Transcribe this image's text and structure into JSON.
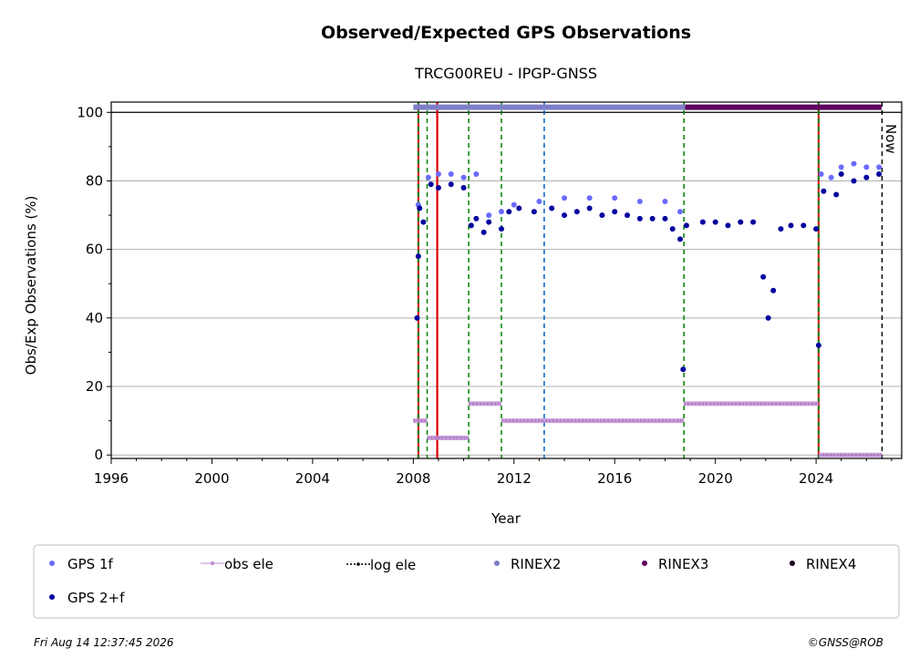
{
  "chart_data": {
    "type": "scatter",
    "title": "Observed/Expected GPS Observations",
    "subtitle": "TRCG00REU - IPGP-GNSS",
    "xlabel": "Year",
    "ylabel": "Obs/Exp Observations (%)",
    "xlim": [
      1996,
      2027.4
    ],
    "ylim": [
      -1,
      103
    ],
    "x_ticks": [
      1996,
      2000,
      2004,
      2008,
      2012,
      2016,
      2020,
      2024
    ],
    "y_ticks": [
      0,
      20,
      40,
      60,
      80,
      100
    ],
    "grid": "horizontal",
    "now_label": "Now",
    "now_x": 2026.62,
    "legend": {
      "placement": "bottom",
      "entries": [
        "GPS 1f",
        "obs ele",
        "log ele",
        "RINEX2",
        "RINEX3",
        "RINEX4",
        "GPS 2+f"
      ]
    },
    "colors": {
      "gps_1f": "#6a6aff",
      "gps_2f": "#00009e",
      "obs_ele": "#c08ad6",
      "log_ele": "#000000",
      "rinex2": "#7e7ec8",
      "rinex3": "#5c005c",
      "rinex4": "#1a0020",
      "event_green": "#008000",
      "event_red": "#dd0000",
      "event_blue": "#0060c0"
    },
    "rinex_bars": [
      {
        "format": "RINEX2",
        "x_start": 2008.0,
        "x_end": 2018.8,
        "y": 101.5
      },
      {
        "format": "RINEX3",
        "x_start": 2018.8,
        "x_end": 2026.6,
        "y": 101.5
      }
    ],
    "event_lines": [
      {
        "x": 2008.2,
        "style": "red-green dashed"
      },
      {
        "x": 2008.55,
        "style": "green dashed"
      },
      {
        "x": 2008.95,
        "style": "red solid"
      },
      {
        "x": 2010.2,
        "style": "green dashed"
      },
      {
        "x": 2011.5,
        "style": "green dashed"
      },
      {
        "x": 2013.2,
        "style": "blue dashed"
      },
      {
        "x": 2018.75,
        "style": "green dashed"
      },
      {
        "x": 2024.1,
        "style": "red-green dashed"
      },
      {
        "x": 2026.62,
        "style": "black dashed"
      }
    ],
    "series": [
      {
        "name": "GPS 1f",
        "points": [
          [
            2008.2,
            73
          ],
          [
            2008.6,
            81
          ],
          [
            2009.0,
            82
          ],
          [
            2009.5,
            82
          ],
          [
            2010.0,
            81
          ],
          [
            2010.5,
            82
          ],
          [
            2011.0,
            70
          ],
          [
            2011.5,
            71
          ],
          [
            2012.0,
            73
          ],
          [
            2013.0,
            74
          ],
          [
            2014.0,
            75
          ],
          [
            2015.0,
            75
          ],
          [
            2016.0,
            75
          ],
          [
            2017.0,
            74
          ],
          [
            2018.0,
            74
          ],
          [
            2018.6,
            71
          ],
          [
            2024.2,
            82
          ],
          [
            2024.6,
            81
          ],
          [
            2025.0,
            84
          ],
          [
            2025.5,
            85
          ],
          [
            2026.0,
            84
          ],
          [
            2026.5,
            84
          ]
        ]
      },
      {
        "name": "GPS 2+f",
        "points": [
          [
            2008.15,
            40
          ],
          [
            2008.2,
            58
          ],
          [
            2008.25,
            72
          ],
          [
            2008.4,
            68
          ],
          [
            2008.7,
            79
          ],
          [
            2009.0,
            78
          ],
          [
            2009.5,
            79
          ],
          [
            2010.0,
            78
          ],
          [
            2010.3,
            67
          ],
          [
            2010.5,
            69
          ],
          [
            2010.8,
            65
          ],
          [
            2011.0,
            68
          ],
          [
            2011.5,
            66
          ],
          [
            2011.8,
            71
          ],
          [
            2012.2,
            72
          ],
          [
            2012.8,
            71
          ],
          [
            2013.5,
            72
          ],
          [
            2014.0,
            70
          ],
          [
            2014.5,
            71
          ],
          [
            2015.0,
            72
          ],
          [
            2015.5,
            70
          ],
          [
            2016.0,
            71
          ],
          [
            2016.5,
            70
          ],
          [
            2017.0,
            69
          ],
          [
            2017.5,
            69
          ],
          [
            2018.0,
            69
          ],
          [
            2018.3,
            66
          ],
          [
            2018.6,
            63
          ],
          [
            2018.72,
            25
          ],
          [
            2018.85,
            67
          ],
          [
            2019.5,
            68
          ],
          [
            2020.0,
            68
          ],
          [
            2020.5,
            67
          ],
          [
            2021.0,
            68
          ],
          [
            2021.5,
            68
          ],
          [
            2021.9,
            52
          ],
          [
            2022.1,
            40
          ],
          [
            2022.3,
            48
          ],
          [
            2022.6,
            66
          ],
          [
            2023.0,
            67
          ],
          [
            2023.5,
            67
          ],
          [
            2024.0,
            66
          ],
          [
            2024.1,
            32
          ],
          [
            2024.3,
            77
          ],
          [
            2024.8,
            76
          ],
          [
            2025.0,
            82
          ],
          [
            2025.5,
            80
          ],
          [
            2026.0,
            81
          ],
          [
            2026.5,
            82
          ]
        ]
      },
      {
        "name": "log ele",
        "steps": [
          {
            "x_start": 2008.0,
            "x_end": 2008.55,
            "y": 10
          },
          {
            "x_start": 2008.55,
            "x_end": 2010.2,
            "y": 5
          },
          {
            "x_start": 2010.2,
            "x_end": 2011.5,
            "y": 15
          },
          {
            "x_start": 2011.5,
            "x_end": 2018.75,
            "y": 10
          },
          {
            "x_start": 2018.75,
            "x_end": 2024.1,
            "y": 15
          },
          {
            "x_start": 2024.1,
            "x_end": 2026.62,
            "y": 0
          }
        ]
      },
      {
        "name": "obs ele",
        "steps": [
          {
            "x_start": 2008.0,
            "x_end": 2008.55,
            "y": 10
          },
          {
            "x_start": 2008.55,
            "x_end": 2010.2,
            "y": 5
          },
          {
            "x_start": 2010.2,
            "x_end": 2011.5,
            "y": 15
          },
          {
            "x_start": 2011.5,
            "x_end": 2018.75,
            "y": 10
          },
          {
            "x_start": 2018.75,
            "x_end": 2024.1,
            "y": 15
          },
          {
            "x_start": 2024.1,
            "x_end": 2026.62,
            "y": 0
          }
        ]
      }
    ]
  },
  "footer": {
    "timestamp": "Fri Aug 14 12:37:45 2026",
    "credit": "©GNSS@ROB"
  }
}
